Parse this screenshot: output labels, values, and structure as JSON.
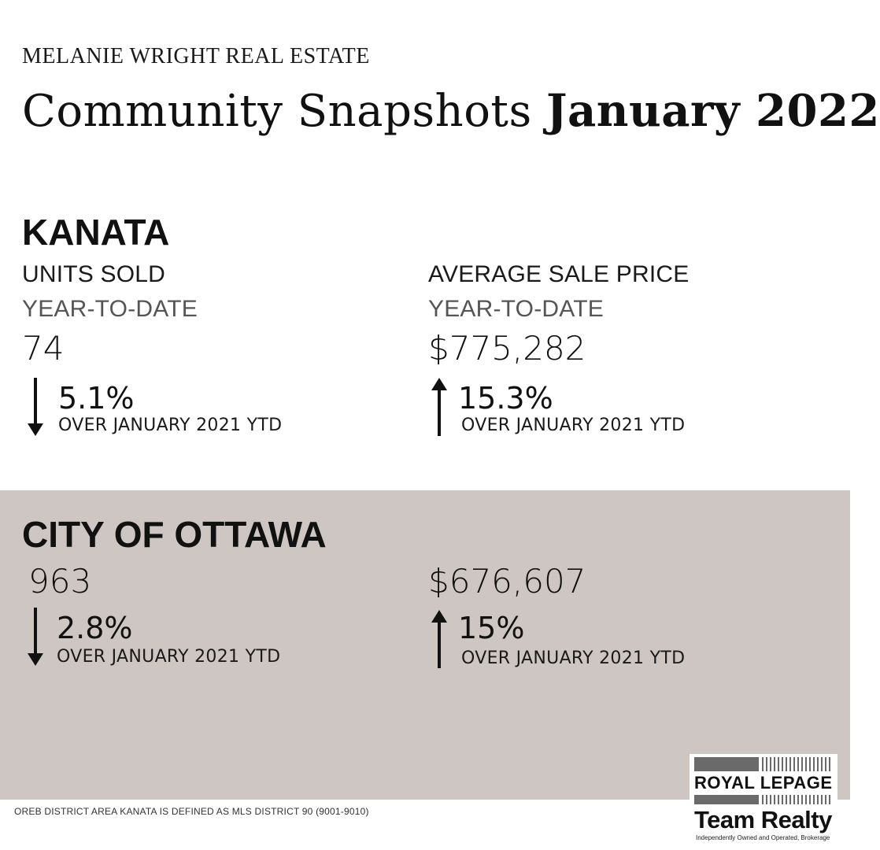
{
  "header": {
    "brand": "MELANIE WRIGHT REAL ESTATE",
    "title_regular": "Community Snapshots",
    "title_bold": "January 2022"
  },
  "kanata": {
    "heading": "KANATA",
    "units": {
      "label": "UNITS SOLD",
      "sublabel": "YEAR-TO-DATE",
      "value": "74",
      "change": "5.1%",
      "direction": "down",
      "comparison": "OVER JANUARY 2021 YTD"
    },
    "price": {
      "label": "AVERAGE SALE PRICE",
      "sublabel": "YEAR-TO-DATE",
      "value": "$775,282",
      "change": "15.3%",
      "direction": "up",
      "comparison": "OVER JANUARY 2021 YTD"
    }
  },
  "ottawa": {
    "heading": "CITY OF OTTAWA",
    "units": {
      "value": "963",
      "change": "2.8%",
      "direction": "down",
      "comparison": "OVER JANUARY 2021 YTD"
    },
    "price": {
      "value": "$676,607",
      "change": "15%",
      "direction": "up",
      "comparison": "OVER JANUARY 2021 YTD"
    }
  },
  "footnote": "OREB DISTRICT AREA KANATA IS DEFINED AS MLS DISTRICT 90 (9001-9010)",
  "logo": {
    "line1": "ROYAL LEPAGE",
    "line2": "Team Realty",
    "tagline": "Independently Owned and Operated, Brokerage"
  },
  "colors": {
    "background": "#ffffff",
    "ottawa_band": "#cdc6c2",
    "text": "#111111"
  }
}
